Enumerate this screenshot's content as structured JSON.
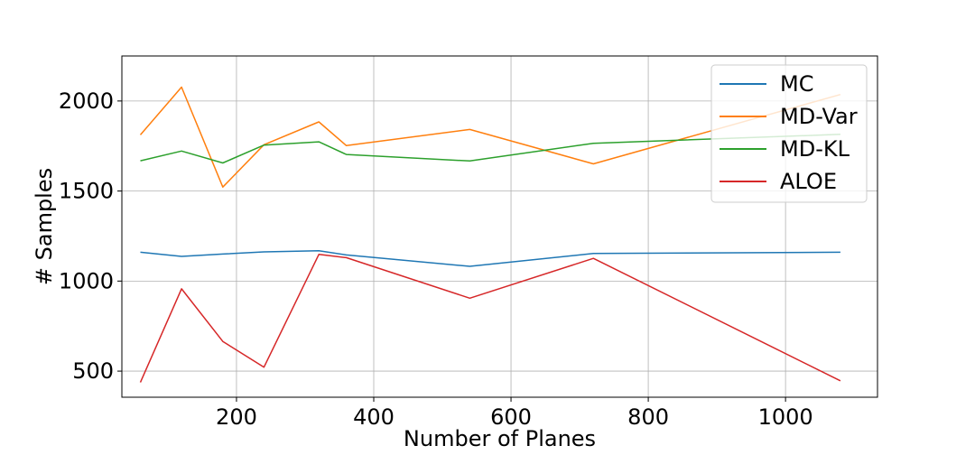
{
  "chart_data": {
    "type": "line",
    "title": "",
    "xlabel": "Number of Planes",
    "ylabel": "# Samples",
    "xlim": [
      33,
      1134
    ],
    "ylim": [
      355,
      2250
    ],
    "xticks": [
      200,
      400,
      600,
      800,
      1000
    ],
    "yticks": [
      500,
      1000,
      1500,
      2000
    ],
    "grid": true,
    "legend_position": "top-right",
    "series": [
      {
        "name": "MC",
        "color": "#1f77b4",
        "x": [
          60,
          120,
          180,
          240,
          320,
          360,
          540,
          720,
          1080
        ],
        "y": [
          1160,
          1137,
          1150,
          1162,
          1168,
          1145,
          1082,
          1153,
          1160
        ]
      },
      {
        "name": "MD-Var",
        "color": "#ff7f0e",
        "x": [
          60,
          120,
          180,
          240,
          320,
          360,
          540,
          720,
          1080
        ],
        "y": [
          1812,
          2077,
          1522,
          1757,
          1884,
          1752,
          1842,
          1651,
          2036
        ]
      },
      {
        "name": "MD-KL",
        "color": "#2ca02c",
        "x": [
          60,
          120,
          180,
          240,
          320,
          360,
          540,
          720,
          1080
        ],
        "y": [
          1668,
          1722,
          1656,
          1755,
          1773,
          1703,
          1667,
          1765,
          1815
        ]
      },
      {
        "name": "ALOE",
        "color": "#d62728",
        "x": [
          60,
          120,
          180,
          240,
          320,
          360,
          540,
          720,
          1080
        ],
        "y": [
          437,
          957,
          665,
          522,
          1148,
          1130,
          905,
          1126,
          446
        ]
      }
    ]
  }
}
